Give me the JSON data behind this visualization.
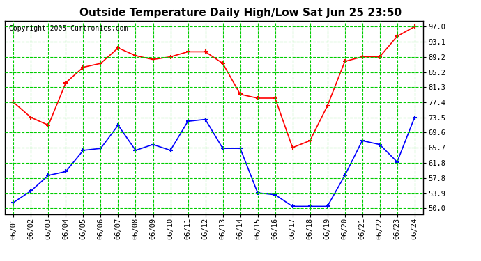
{
  "title": "Outside Temperature Daily High/Low Sat Jun 25 23:50",
  "copyright": "Copyright 2005 Curtronics.com",
  "dates": [
    "06/01",
    "06/02",
    "06/03",
    "06/04",
    "06/05",
    "06/06",
    "06/07",
    "06/08",
    "06/09",
    "06/10",
    "06/11",
    "06/12",
    "06/13",
    "06/14",
    "06/15",
    "06/16",
    "06/17",
    "06/18",
    "06/19",
    "06/20",
    "06/21",
    "06/22",
    "06/23",
    "06/24"
  ],
  "high_temps": [
    77.4,
    73.5,
    71.5,
    82.5,
    86.5,
    87.5,
    91.5,
    89.5,
    88.5,
    89.2,
    90.5,
    90.5,
    87.5,
    79.5,
    78.5,
    78.5,
    65.7,
    67.5,
    76.5,
    88.0,
    89.2,
    89.2,
    94.5,
    97.0
  ],
  "low_temps": [
    51.5,
    54.5,
    58.5,
    59.5,
    65.0,
    65.5,
    71.5,
    65.0,
    66.5,
    65.0,
    72.5,
    73.0,
    65.5,
    65.5,
    54.0,
    53.5,
    50.5,
    50.5,
    50.5,
    58.5,
    67.5,
    66.5,
    62.0,
    73.5
  ],
  "high_color": "#ff0000",
  "low_color": "#0000ff",
  "bg_color": "#ffffff",
  "grid_color": "#00cc00",
  "yticks": [
    50.0,
    53.9,
    57.8,
    61.8,
    65.7,
    69.6,
    73.5,
    77.4,
    81.3,
    85.2,
    89.2,
    93.1,
    97.0
  ],
  "ymin": 48.5,
  "ymax": 98.5,
  "title_fontsize": 11,
  "copyright_fontsize": 7,
  "tick_fontsize": 7.5,
  "marker": "+"
}
